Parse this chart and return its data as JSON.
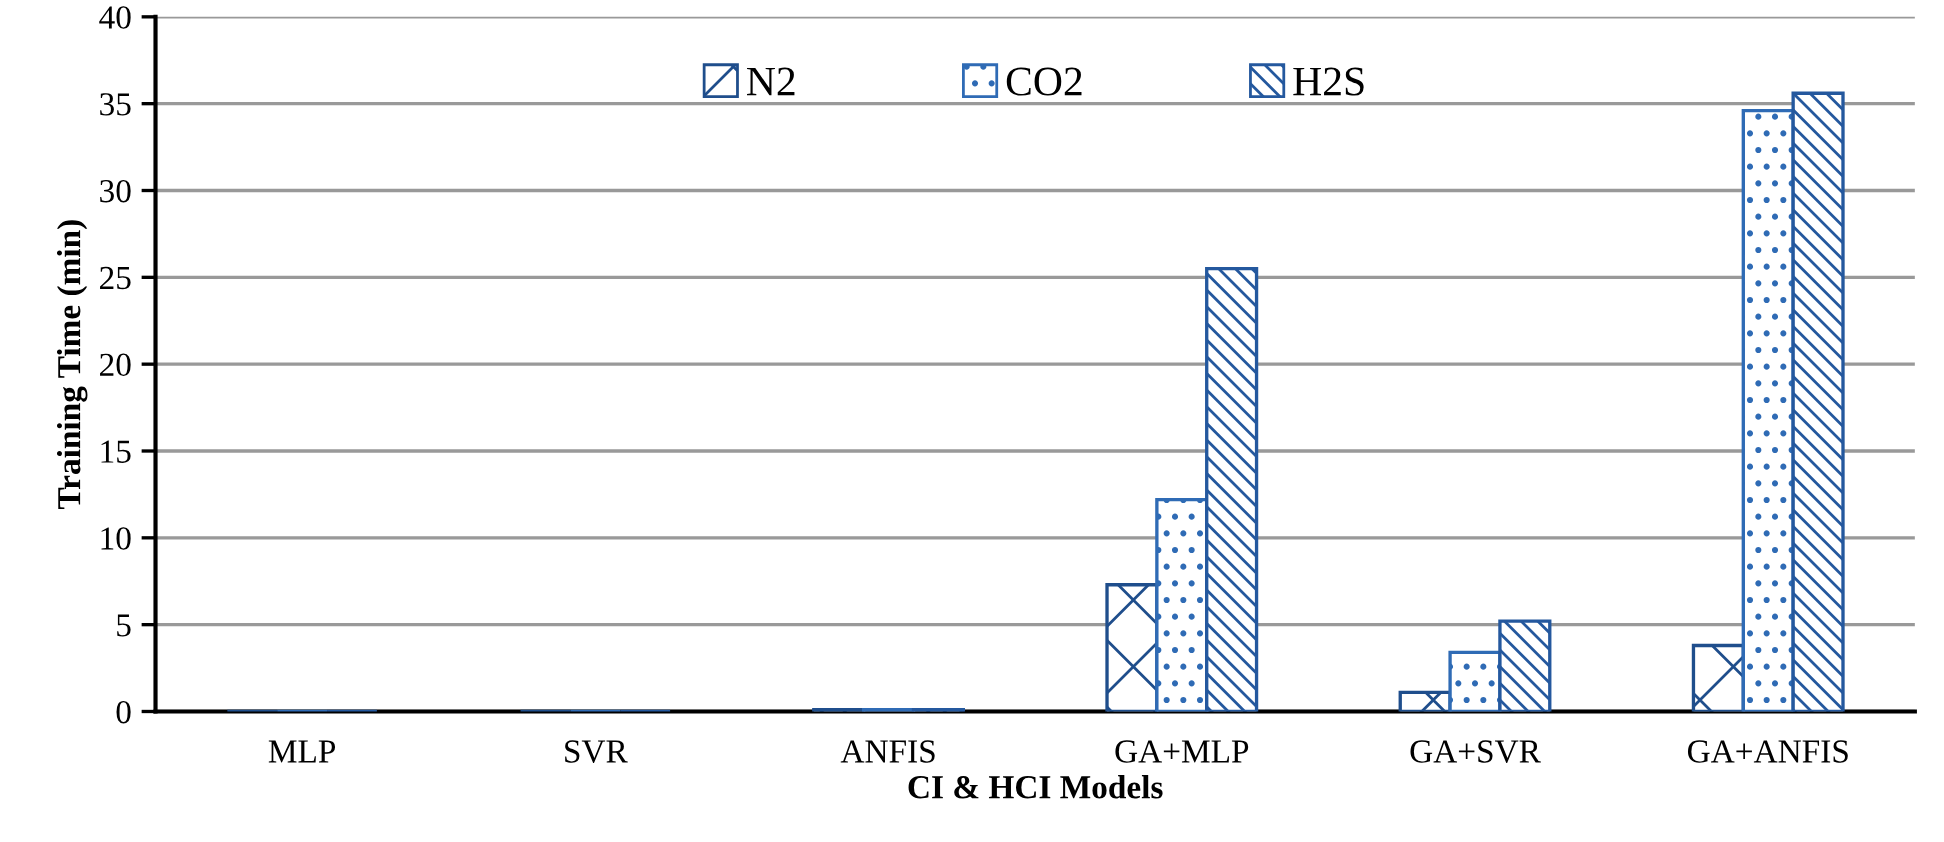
{
  "chart_data": {
    "type": "bar",
    "xlabel": "CI & HCI Models",
    "ylabel": "Training Time (min)",
    "categories": [
      "MLP",
      "SVR",
      "ANFIS",
      "GA+MLP",
      "GA+SVR",
      "GA+ANFIS"
    ],
    "series": [
      {
        "name": "N2",
        "color": "#1f4e8c",
        "values": [
          0,
          0,
          0.1,
          7.3,
          1.1,
          3.8
        ]
      },
      {
        "name": "CO2",
        "color": "#2f6bb5",
        "values": [
          0,
          0,
          0.1,
          12.2,
          3.4,
          34.6
        ]
      },
      {
        "name": "H2S",
        "color": "#24589e",
        "values": [
          0,
          0,
          0.1,
          25.5,
          5.2,
          35.6
        ]
      }
    ],
    "ylim": [
      0,
      40
    ],
    "yticks": [
      0,
      5,
      10,
      15,
      20,
      25,
      30,
      35,
      40
    ],
    "grid": "y",
    "legend": "top"
  }
}
